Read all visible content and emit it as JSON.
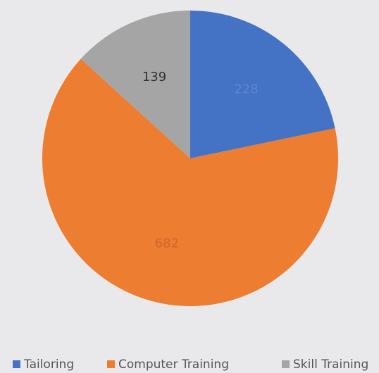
{
  "chart_data": {
    "type": "pie",
    "categories": [
      "Tailoring",
      "Computer Training",
      "Skill Training"
    ],
    "values": [
      228,
      682,
      139
    ],
    "colors": [
      "#4472c4",
      "#ed7d31",
      "#a5a5a5"
    ],
    "label_colors": [
      "#5f86cf",
      "#c8682a",
      "#333333"
    ],
    "legend": "bottom"
  }
}
